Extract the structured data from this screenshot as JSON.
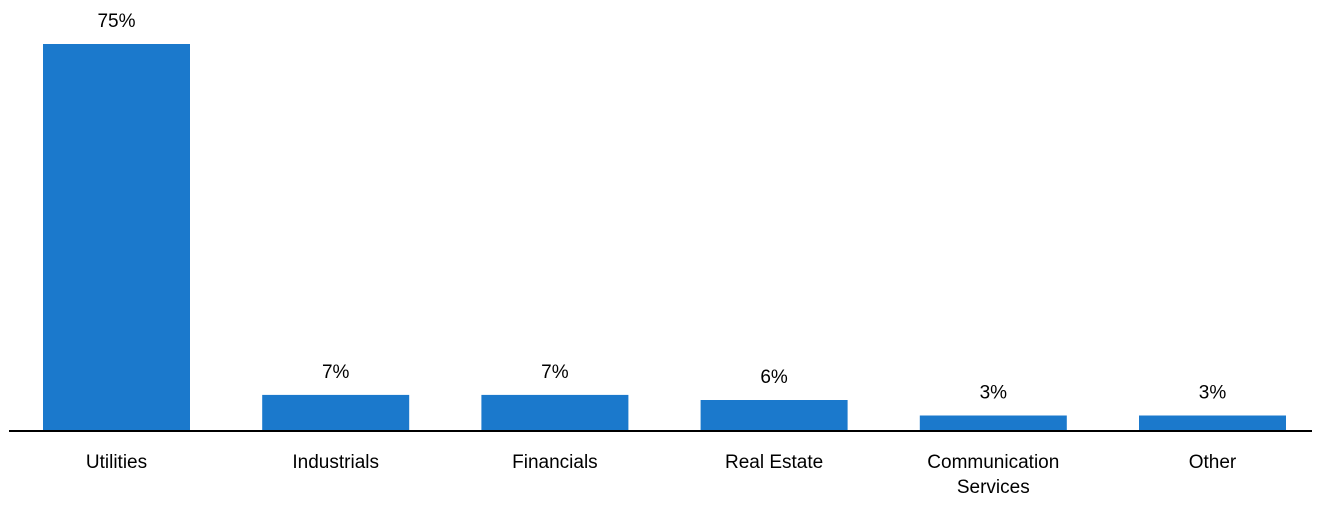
{
  "chart_data": {
    "type": "bar",
    "categories": [
      "Utilities",
      "Industrials",
      "Financials",
      "Real Estate",
      "Communication Services",
      "Other"
    ],
    "category_lines": [
      [
        "Utilities"
      ],
      [
        "Industrials"
      ],
      [
        "Financials"
      ],
      [
        "Real Estate"
      ],
      [
        "Communication",
        "Services"
      ],
      [
        "Other"
      ]
    ],
    "values": [
      75,
      7,
      7,
      6,
      3,
      3
    ],
    "value_labels": [
      "75%",
      "7%",
      "7%",
      "6%",
      "3%",
      "3%"
    ],
    "unit": "%",
    "ylim": [
      0,
      75
    ],
    "grid": false,
    "legend": "none",
    "bar_color": "#1b79cc",
    "axis_color": "#000000"
  }
}
